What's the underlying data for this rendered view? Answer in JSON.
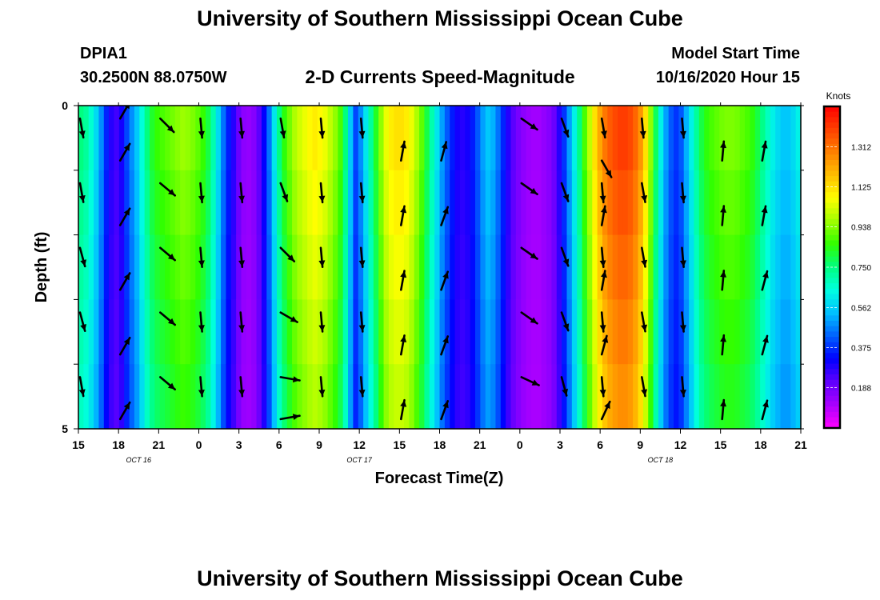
{
  "header": {
    "title": "University of Southern Mississippi Ocean Cube",
    "station_id": "DPIA1",
    "coordinates": "30.2500N 88.0750W",
    "subtitle": "2-D Currents Speed-Magnitude",
    "model_start_label": "Model Start Time",
    "model_start_value": "10/16/2020 Hour 15"
  },
  "footer": {
    "title": "University of Southern Mississippi Ocean Cube"
  },
  "chart_data": {
    "type": "heatmap",
    "title": "2-D Currents Speed-Magnitude",
    "xlabel": "Forecast Time(Z)",
    "ylabel": "Depth (ft)",
    "x_tick_labels": [
      "15",
      "18",
      "21",
      "0",
      "3",
      "6",
      "9",
      "12",
      "15",
      "18",
      "21",
      "0",
      "3",
      "6",
      "9",
      "12",
      "15",
      "18",
      "21"
    ],
    "x_range_hours": [
      0,
      54
    ],
    "date_labels": [
      {
        "text": "OCT 16",
        "hour": 4.5
      },
      {
        "text": "OCT 17",
        "hour": 21
      },
      {
        "text": "OCT 18",
        "hour": 43.5
      }
    ],
    "y_tick_labels": [
      "0",
      "5"
    ],
    "ylim": [
      0,
      5
    ],
    "depth_rows": 5,
    "colorbar": {
      "unit": "Knots",
      "ticks": [
        "1.312",
        "1.125",
        "0.938",
        "0.750",
        "0.562",
        "0.375",
        "0.188"
      ],
      "range": [
        0,
        1.5
      ],
      "colors": [
        "#ff00ff",
        "#aa00ff",
        "#6000ff",
        "#0000ff",
        "#0060ff",
        "#00c0ff",
        "#00ffe0",
        "#00ff80",
        "#30ff00",
        "#a0ff00",
        "#ffff00",
        "#ffc000",
        "#ff8000",
        "#ff4000",
        "#ff0000"
      ]
    },
    "speed_knots": [
      0.75,
      0.72,
      0.66,
      0.58,
      0.48,
      0.36,
      0.28,
      0.25,
      0.3,
      0.4,
      0.48,
      0.55,
      0.65,
      0.75,
      0.82,
      0.86,
      0.88,
      0.9,
      0.92,
      0.94,
      0.96,
      0.95,
      0.93,
      0.9,
      0.86,
      0.8,
      0.7,
      0.58,
      0.45,
      0.35,
      0.28,
      0.2,
      0.15,
      0.14,
      0.16,
      0.22,
      0.32,
      0.45,
      0.6,
      0.75,
      0.85,
      0.92,
      0.98,
      1.02,
      1.05,
      1.08,
      1.1,
      1.08,
      1.05,
      1.0,
      0.95,
      0.88,
      0.75,
      0.55,
      0.4,
      0.48,
      0.6,
      0.72,
      0.83,
      0.95,
      1.05,
      1.1,
      1.12,
      1.12,
      1.1,
      1.05,
      0.98,
      0.9,
      0.8,
      0.7,
      0.6,
      0.5,
      0.42,
      0.35,
      0.3,
      0.28,
      0.3,
      0.35,
      0.42,
      0.5,
      0.55,
      0.52,
      0.45,
      0.36,
      0.28,
      0.22,
      0.18,
      0.15,
      0.13,
      0.12,
      0.12,
      0.14,
      0.16,
      0.2,
      0.28,
      0.38,
      0.5,
      0.62,
      0.75,
      0.88,
      1.0,
      1.12,
      1.22,
      1.3,
      1.35,
      1.38,
      1.4,
      1.4,
      1.38,
      1.33,
      1.25,
      1.12,
      0.95,
      0.78,
      0.62,
      0.5,
      0.42,
      0.38,
      0.42,
      0.52,
      0.62,
      0.72,
      0.8,
      0.85,
      0.88,
      0.9,
      0.92,
      0.93,
      0.93,
      0.92,
      0.9,
      0.88,
      0.85,
      0.8,
      0.74,
      0.68,
      0.62,
      0.58,
      0.55,
      0.55,
      0.58,
      0.62
    ],
    "vector_directions_deg": [
      [
        170,
        40,
        170,
        45,
        45,
        50,
        175,
        175,
        175,
        175,
        175,
        175,
        175,
        175,
        175,
        175,
        175,
        175,
        175,
        175,
        175,
        175,
        175,
        175,
        175,
        175,
        175,
        175,
        175,
        175,
        175,
        175,
        175,
        175,
        175,
        175,
        175,
        175,
        175,
        175
      ],
      [
        40,
        30,
        125,
        130,
        130,
        125,
        175,
        175,
        175,
        175,
        175,
        175,
        175,
        175,
        175,
        175,
        175,
        175,
        175,
        175,
        175,
        175,
        175,
        175,
        175,
        175,
        175,
        175,
        175,
        175,
        175,
        175,
        175,
        175,
        175,
        175,
        175,
        175,
        175,
        175
      ]
    ],
    "arrow_grid": {
      "hours": [
        0,
        3,
        6,
        9,
        12,
        15,
        18,
        21,
        24,
        27,
        30,
        33,
        36,
        39,
        42,
        45,
        48,
        51
      ],
      "depths": [
        0.2,
        0.85,
        1.2,
        1.85,
        2.2,
        2.85,
        3.2,
        3.85,
        4.2,
        4.85
      ],
      "angles": [
        [
          170,
          30,
          135,
          175,
          175,
          170,
          175,
          175,
          null,
          null,
          null,
          125,
          160,
          170,
          175,
          175,
          null,
          null
        ],
        [
          null,
          30,
          null,
          null,
          null,
          null,
          null,
          null,
          10,
          15,
          null,
          null,
          null,
          150,
          null,
          null,
          5,
          10
        ],
        [
          170,
          null,
          130,
          175,
          175,
          160,
          175,
          175,
          null,
          null,
          null,
          125,
          160,
          175,
          170,
          175,
          null,
          null
        ],
        [
          null,
          30,
          null,
          null,
          null,
          null,
          null,
          null,
          10,
          20,
          null,
          null,
          null,
          10,
          null,
          null,
          5,
          10
        ],
        [
          165,
          null,
          130,
          175,
          175,
          135,
          175,
          175,
          null,
          null,
          null,
          125,
          160,
          175,
          170,
          175,
          null,
          null
        ],
        [
          null,
          30,
          null,
          null,
          null,
          null,
          null,
          null,
          10,
          20,
          null,
          null,
          null,
          10,
          null,
          null,
          5,
          15
        ],
        [
          165,
          null,
          130,
          175,
          175,
          120,
          175,
          175,
          null,
          null,
          null,
          125,
          160,
          175,
          170,
          175,
          null,
          null
        ],
        [
          null,
          30,
          null,
          null,
          null,
          null,
          null,
          null,
          10,
          20,
          null,
          null,
          null,
          15,
          null,
          null,
          5,
          15
        ],
        [
          170,
          null,
          130,
          175,
          175,
          100,
          175,
          175,
          null,
          null,
          null,
          115,
          165,
          175,
          170,
          175,
          null,
          null
        ],
        [
          null,
          30,
          null,
          null,
          null,
          80,
          null,
          null,
          10,
          20,
          null,
          null,
          null,
          25,
          null,
          null,
          5,
          15
        ]
      ]
    },
    "grid": false
  }
}
